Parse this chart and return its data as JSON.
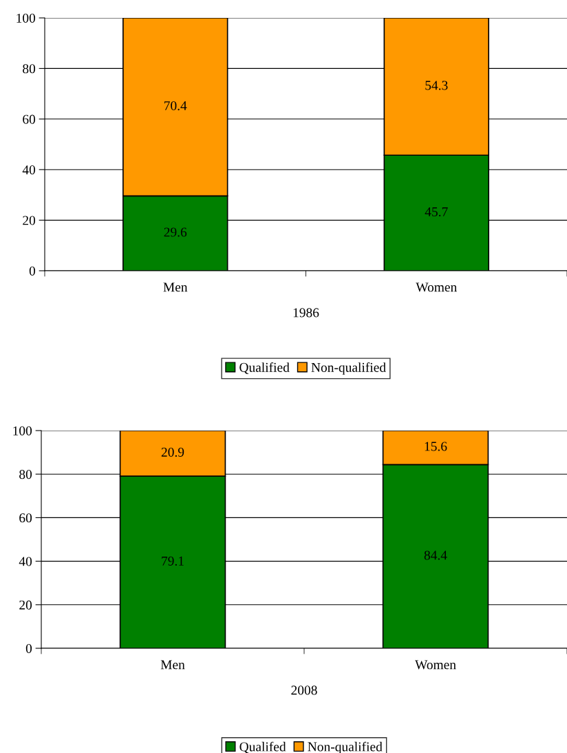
{
  "chart_data": [
    {
      "type": "bar",
      "stacked": true,
      "categories": [
        "Men",
        "Women"
      ],
      "xlabel": "1986",
      "series": [
        {
          "name": "Qualified",
          "color": "#008000",
          "values": [
            29.6,
            45.7
          ]
        },
        {
          "name": "Non-qualified",
          "color": "#ff9900",
          "values": [
            70.4,
            54.3
          ]
        }
      ],
      "ylim": [
        0,
        100
      ],
      "yticks": [
        0,
        20,
        40,
        60,
        80,
        100
      ],
      "grid": "y",
      "legend": "bottom",
      "data_labels": true
    },
    {
      "type": "bar",
      "stacked": true,
      "categories": [
        "Men",
        "Women"
      ],
      "xlabel": "2008",
      "series": [
        {
          "name": "Qualifed",
          "color": "#008000",
          "values": [
            79.1,
            84.4
          ]
        },
        {
          "name": "Non-qualified",
          "color": "#ff9900",
          "values": [
            20.9,
            15.6
          ]
        }
      ],
      "ylim": [
        0,
        100
      ],
      "yticks": [
        0,
        20,
        40,
        60,
        80,
        100
      ],
      "grid": "y",
      "legend": "bottom",
      "data_labels": true
    }
  ]
}
